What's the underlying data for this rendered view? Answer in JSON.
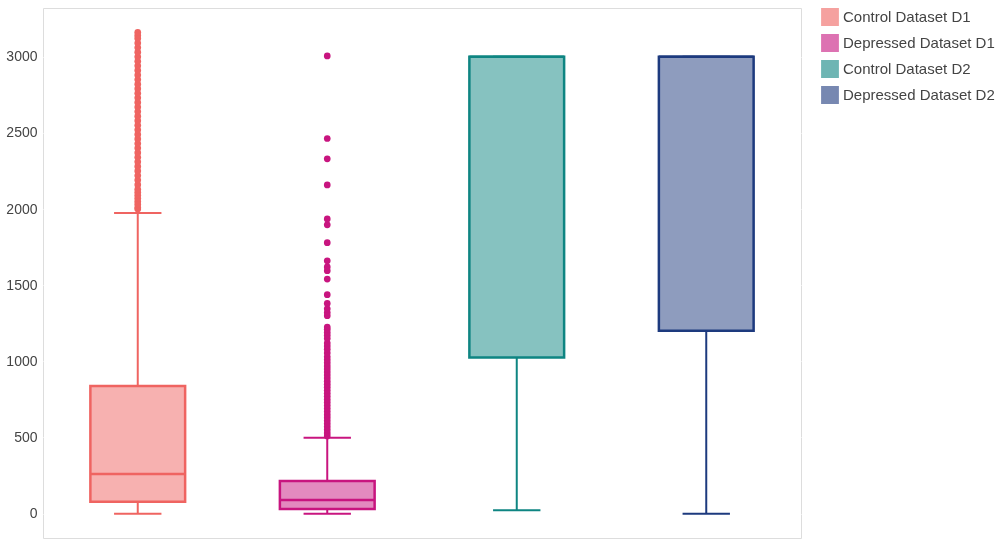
{
  "chart_data": {
    "type": "box",
    "categories": [
      null,
      null,
      null,
      null
    ],
    "ylim": [
      -160,
      3320
    ],
    "yticks": [
      0,
      500,
      1000,
      1500,
      2000,
      2500,
      3000
    ],
    "grid": "y",
    "legend": "right",
    "series": [
      {
        "name": "Control Dataset D1",
        "color": "#ef6461",
        "boxes": [
          {
            "low": 0,
            "q1": 78,
            "median": 260,
            "q3": 838,
            "high": 1974,
            "outliers": [
              2000,
              2010,
              2030,
              2050,
              2070,
              2090,
              2110,
              2130,
              2160,
              2190,
              2220,
              2250,
              2280,
              2310,
              2340,
              2370,
              2400,
              2430,
              2460,
              2490,
              2520,
              2550,
              2580,
              2610,
              2640,
              2670,
              2700,
              2730,
              2760,
              2790,
              2820,
              2850,
              2880,
              2910,
              2940,
              2970,
              3000,
              3030,
              3060,
              3090,
              3120,
              3140,
              3160
            ]
          },
          null,
          null,
          null
        ]
      },
      {
        "name": "Depressed Dataset D1",
        "color": "#c8157f",
        "boxes": [
          null,
          {
            "low": 0,
            "q1": 30,
            "median": 90,
            "q3": 215,
            "high": 498,
            "outliers": [
              510,
              530,
              550,
              570,
              590,
              610,
              630,
              650,
              670,
              690,
              710,
              730,
              750,
              770,
              790,
              810,
              830,
              850,
              870,
              890,
              910,
              930,
              950,
              970,
              990,
              1010,
              1030,
              1055,
              1080,
              1100,
              1120,
              1150,
              1170,
              1190,
              1210,
              1225,
              1300,
              1320,
              1345,
              1380,
              1438,
              1540,
              1595,
              1620,
              1660,
              1779,
              1896,
              1935,
              2158,
              2330,
              2463,
              3005
            ]
          },
          null,
          null
        ]
      },
      {
        "name": "Control Dataset D2",
        "color": "#0e8582",
        "boxes": [
          null,
          null,
          {
            "low": 23,
            "q1": 1025,
            "median": 3000,
            "q3": 3000,
            "high": 3000
          },
          null
        ]
      },
      {
        "name": "Depressed Dataset D2",
        "color": "#1d3a7e",
        "boxes": [
          null,
          null,
          null,
          {
            "low": 0,
            "q1": 1201,
            "median": 3000,
            "q3": 3000,
            "high": 3000
          }
        ]
      }
    ]
  }
}
